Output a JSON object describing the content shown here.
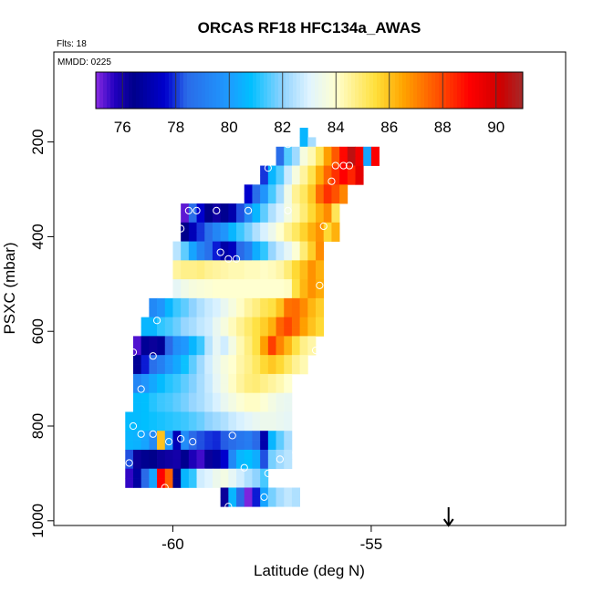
{
  "chart_data": {
    "type": "heatmap",
    "title": "ORCAS RF18 HFC134a_AWAS",
    "info_flights": "Flts: 18",
    "info_date": "MMDD: 0225",
    "xlabel": "Latitude (deg N)",
    "ylabel": "PSXC (mbar)",
    "xlim": [
      -63,
      -50.1
    ],
    "ylim": [
      1010,
      10
    ],
    "x_ticks": [
      -60,
      -55
    ],
    "x_tick_labels": [
      "-60",
      "-55"
    ],
    "y_ticks": [
      200,
      400,
      600,
      800,
      1000
    ],
    "y_tick_labels": [
      "200",
      "400",
      "600",
      "800",
      "1000"
    ],
    "colorbar": {
      "range": [
        75,
        91
      ],
      "ticks": [
        76,
        78,
        80,
        82,
        84,
        86,
        88,
        90
      ],
      "tick_labels": [
        "76",
        "78",
        "80",
        "82",
        "84",
        "86",
        "88",
        "90"
      ],
      "stops": [
        {
          "v": 75,
          "c": "#8A2BE2"
        },
        {
          "v": 75.7,
          "c": "#2200C0"
        },
        {
          "v": 76.4,
          "c": "#00008B"
        },
        {
          "v": 77.6,
          "c": "#0000CD"
        },
        {
          "v": 78.4,
          "c": "#2A6AE8"
        },
        {
          "v": 80,
          "c": "#1E9BFF"
        },
        {
          "v": 80.8,
          "c": "#00BFFF"
        },
        {
          "v": 82,
          "c": "#8FD3FF"
        },
        {
          "v": 83,
          "c": "#E0F4FF"
        },
        {
          "v": 84,
          "c": "#FFFFD0"
        },
        {
          "v": 85.5,
          "c": "#FFDF3A"
        },
        {
          "v": 86.5,
          "c": "#FFA500"
        },
        {
          "v": 88,
          "c": "#FF4500"
        },
        {
          "v": 89,
          "c": "#FF0000"
        },
        {
          "v": 90.2,
          "c": "#CC0000"
        },
        {
          "v": 91,
          "c": "#A52A2A"
        }
      ]
    },
    "bin_width_deg": 0.2,
    "bin_height_mbar": 20,
    "rows": [
      {
        "p": 180,
        "x0": -56.8,
        "v": [
          80.6
        ]
      },
      {
        "p": 200,
        "x0": -56.8,
        "v": [
          80.6,
          82.3
        ]
      },
      {
        "p": 220,
        "x0": -57.4,
        "v": [
          78.5,
          81.5,
          82.2,
          83.7,
          84.3,
          85.2,
          86.6,
          87.7,
          88.9,
          90.5,
          89.3,
          80.2,
          89.1
        ]
      },
      {
        "p": 240,
        "x0": -57.4,
        "v": [
          78.5,
          81.5,
          82.2,
          83.7,
          84.3,
          85.2,
          86.6,
          87.7,
          88.9,
          90.5,
          89.3,
          80.2,
          89.1
        ]
      },
      {
        "p": 260,
        "x0": -57.8,
        "v": [
          78.0,
          80.6,
          81.5,
          82.7,
          83.7,
          84.5,
          85.3,
          86.4,
          87.5,
          88.3,
          89.0,
          88.5,
          89.6
        ]
      },
      {
        "p": 280,
        "x0": -57.8,
        "v": [
          78.0,
          80.6,
          81.5,
          82.7,
          83.7,
          84.5,
          85.3,
          86.4,
          87.5,
          88.3,
          89.0,
          88.5,
          89.6
        ]
      },
      {
        "p": 300,
        "x0": -58.2,
        "v": [
          77.6,
          78.5,
          79.8,
          81.4,
          82.3,
          83.5,
          84.6,
          85.1,
          85.9,
          87.4,
          88.3,
          87.8,
          87.0
        ]
      },
      {
        "p": 320,
        "x0": -58.2,
        "v": [
          77.6,
          78.5,
          79.8,
          81.4,
          82.3,
          83.5,
          84.6,
          85.1,
          85.9,
          87.4,
          88.3,
          87.8,
          87.0
        ]
      },
      {
        "p": 340,
        "x0": -59.8,
        "v": [
          75.3,
          78.5,
          77.6,
          76.4,
          76.1,
          76.5,
          77.0,
          78.2,
          79.4,
          80.6,
          81.6,
          82.4,
          82.9,
          83.6,
          84.3,
          84.9,
          85.6,
          86.3,
          86.9,
          85.2
        ]
      },
      {
        "p": 360,
        "x0": -59.8,
        "v": [
          75.3,
          78.5,
          77.6,
          76.4,
          76.1,
          76.5,
          77.0,
          78.2,
          79.4,
          80.6,
          81.6,
          82.4,
          82.9,
          83.6,
          84.3,
          84.9,
          85.6,
          86.3,
          86.9,
          85.2
        ]
      },
      {
        "p": 380,
        "x0": -59.8,
        "v": [
          76.4,
          77.2,
          78.0,
          78.6,
          79.3,
          79.8,
          80.6,
          81.3,
          81.8,
          82.4,
          82.9,
          83.4,
          84.0,
          84.6,
          85.1,
          85.7,
          86.3,
          86.8,
          85.6,
          86.3
        ]
      },
      {
        "p": 400,
        "x0": -59.8,
        "v": [
          76.4,
          77.2,
          78.0,
          78.6,
          79.3,
          79.8,
          80.6,
          81.3,
          81.8,
          82.4,
          82.9,
          83.4,
          84.0,
          84.6,
          85.1,
          85.7,
          86.3,
          86.8,
          85.6,
          86.3
        ]
      },
      {
        "p": 420,
        "x0": -60.0,
        "v": [
          82.5,
          81.6,
          80.2,
          79.2,
          78.6,
          77.8,
          76.9,
          77.3,
          78.4,
          79.1,
          80.4,
          81.2,
          82.1,
          82.7,
          83.2,
          83.9,
          84.9,
          85.8,
          86.9
        ]
      },
      {
        "p": 440,
        "x0": -60.0,
        "v": [
          82.5,
          81.6,
          80.2,
          79.2,
          78.6,
          77.8,
          76.9,
          77.3,
          78.4,
          79.1,
          80.4,
          81.2,
          82.1,
          82.7,
          83.2,
          83.9,
          84.9,
          85.8,
          86.9
        ]
      },
      {
        "p": 460,
        "x0": -60.0,
        "v": [
          84.5,
          84.7,
          84.7,
          84.8,
          84.6,
          84.5,
          84.4,
          84.3,
          84.3,
          84.2,
          84.2,
          84.1,
          84.2,
          84.4,
          84.9,
          85.6,
          86.1,
          86.8,
          86.3
        ]
      },
      {
        "p": 480,
        "x0": -60.0,
        "v": [
          84.5,
          84.7,
          84.7,
          84.8,
          84.6,
          84.5,
          84.4,
          84.3,
          84.3,
          84.2,
          84.2,
          84.1,
          84.2,
          84.4,
          84.9,
          85.6,
          86.1,
          86.8,
          86.3
        ]
      },
      {
        "p": 500,
        "x0": -60.0,
        "v": [
          83.2,
          83.5,
          83.7,
          83.8,
          83.9,
          84.0,
          84.0,
          84.0,
          84.0,
          84.0,
          84.0,
          84.0,
          84.0,
          84.0,
          84.1,
          85.4,
          86.2,
          86.8,
          86.4
        ]
      },
      {
        "p": 520,
        "x0": -60.0,
        "v": [
          83.2,
          83.5,
          83.7,
          83.8,
          83.9,
          84.0,
          84.0,
          84.0,
          84.0,
          84.0,
          84.0,
          84.0,
          84.0,
          84.0,
          84.1,
          85.4,
          86.2,
          86.8,
          86.4
        ]
      },
      {
        "p": 540,
        "x0": -60.6,
        "v": [
          79.4,
          79.8,
          80.6,
          81.3,
          81.6,
          82.0,
          82.4,
          82.7,
          82.9,
          83.3,
          83.7,
          84.1,
          84.5,
          84.8,
          85.2,
          85.4,
          86.0,
          87.3,
          87.4,
          86.9,
          86.2,
          85.8
        ]
      },
      {
        "p": 560,
        "x0": -60.6,
        "v": [
          79.4,
          79.8,
          80.6,
          81.3,
          81.6,
          82.0,
          82.4,
          82.7,
          82.9,
          83.3,
          83.7,
          84.1,
          84.5,
          84.8,
          85.2,
          85.4,
          86.0,
          87.3,
          87.4,
          86.9,
          86.2,
          85.8
        ]
      },
      {
        "p": 580,
        "x0": -60.8,
        "v": [
          80.6,
          80.6,
          81.2,
          81.4,
          81.7,
          82.1,
          82.3,
          82.6,
          82.8,
          83.3,
          83.7,
          84.2,
          84.6,
          85.0,
          85.4,
          85.8,
          86.3,
          87.5,
          88.0,
          87.4,
          86.6,
          86.0,
          85.6
        ]
      },
      {
        "p": 600,
        "x0": -60.8,
        "v": [
          80.6,
          80.6,
          81.2,
          81.4,
          81.7,
          82.1,
          82.3,
          82.6,
          82.8,
          83.3,
          83.7,
          84.2,
          84.6,
          85.0,
          85.4,
          85.8,
          86.3,
          87.5,
          88.0,
          87.4,
          86.6,
          86.0,
          85.6
        ]
      },
      {
        "p": 620,
        "x0": -61.0,
        "v": [
          75.4,
          76.6,
          76.2,
          76.6,
          78.4,
          79.6,
          79.9,
          80.6,
          81.3,
          82.5,
          83.2,
          82.8,
          83.6,
          84.3,
          84.8,
          85.4,
          86.6,
          88.1,
          87.0,
          86.2,
          85.4,
          84.7,
          84.4
        ]
      },
      {
        "p": 640,
        "x0": -61.0,
        "v": [
          75.4,
          76.6,
          76.2,
          76.6,
          78.4,
          79.6,
          79.9,
          80.6,
          81.3,
          82.5,
          83.2,
          82.8,
          83.6,
          84.3,
          84.8,
          85.4,
          86.6,
          88.1,
          87.0,
          86.2,
          85.4,
          84.7,
          84.4
        ]
      },
      {
        "p": 660,
        "x0": -61.0,
        "v": [
          76.6,
          77.8,
          78.6,
          79.1,
          79.8,
          80.3,
          80.9,
          81.6,
          82.2,
          82.8,
          83.3,
          83.7,
          84.0,
          84.4,
          84.7,
          85.1,
          85.6,
          85.9,
          85.6,
          85.1,
          84.6,
          84.3
        ]
      },
      {
        "p": 680,
        "x0": -61.0,
        "v": [
          76.6,
          77.8,
          78.6,
          79.1,
          79.8,
          80.3,
          80.9,
          81.6,
          82.2,
          82.8,
          83.3,
          83.7,
          84.0,
          84.4,
          84.7,
          85.1,
          85.6,
          85.9,
          85.6,
          85.1,
          84.6,
          84.3
        ]
      },
      {
        "p": 700,
        "x0": -61.0,
        "v": [
          79.3,
          79.8,
          80.3,
          80.7,
          81.1,
          81.3,
          81.6,
          81.9,
          82.3,
          82.7,
          83.2,
          83.6,
          84.1,
          84.5,
          84.8,
          84.9,
          84.7,
          84.5,
          84.3,
          84.0
        ]
      },
      {
        "p": 720,
        "x0": -61.0,
        "v": [
          79.3,
          79.8,
          80.3,
          80.7,
          81.1,
          81.3,
          81.6,
          81.9,
          82.3,
          82.7,
          83.2,
          83.6,
          84.1,
          84.5,
          84.8,
          84.9,
          84.7,
          84.5,
          84.3,
          84.0
        ]
      },
      {
        "p": 740,
        "x0": -61.0,
        "v": [
          80.7,
          80.8,
          81.1,
          81.3,
          81.4,
          81.6,
          81.8,
          82.1,
          82.3,
          82.6,
          82.9,
          83.3,
          83.6,
          83.9,
          84.1,
          84.1,
          83.9,
          83.6,
          83.4,
          83.3
        ]
      },
      {
        "p": 760,
        "x0": -61.0,
        "v": [
          80.7,
          80.8,
          81.1,
          81.3,
          81.4,
          81.6,
          81.8,
          82.1,
          82.3,
          82.6,
          82.9,
          83.3,
          83.6,
          83.9,
          84.1,
          84.1,
          83.9,
          83.6,
          83.4,
          83.3
        ]
      },
      {
        "p": 780,
        "x0": -61.2,
        "v": [
          80.7,
          80.7,
          80.8,
          80.9,
          81.0,
          81.1,
          81.2,
          81.3,
          81.5,
          81.7,
          82.0,
          82.2,
          82.4,
          82.7,
          82.9,
          83.1,
          83.3,
          83.4,
          83.4,
          83.3,
          83.2
        ]
      },
      {
        "p": 800,
        "x0": -61.2,
        "v": [
          80.7,
          80.7,
          80.8,
          80.9,
          81.0,
          81.1,
          81.2,
          81.3,
          81.5,
          81.7,
          82.0,
          82.2,
          82.4,
          82.7,
          82.9,
          83.1,
          83.3,
          83.4,
          83.4,
          83.3,
          83.2
        ]
      },
      {
        "p": 820,
        "x0": -61.2,
        "v": [
          80.6,
          80.5,
          80.2,
          79.4,
          86.0,
          79.9,
          77.2,
          79.5,
          78.4,
          78.2,
          78.0,
          77.9,
          78.3,
          78.5,
          78.8,
          79.0,
          78.4,
          77.0,
          80.6,
          81.6,
          82.3
        ]
      },
      {
        "p": 840,
        "x0": -61.2,
        "v": [
          80.6,
          80.5,
          80.2,
          79.4,
          86.0,
          79.9,
          77.2,
          79.5,
          78.4,
          78.2,
          78.0,
          77.9,
          78.3,
          78.5,
          78.8,
          79.0,
          78.4,
          77.0,
          80.6,
          81.6,
          82.3
        ]
      },
      {
        "p": 860,
        "x0": -61.2,
        "v": [
          78.2,
          76.2,
          76.5,
          76.4,
          76.2,
          76.1,
          76.0,
          76.5,
          75.8,
          75.5,
          76.2,
          76.8,
          77.6,
          79.4,
          80.6,
          80.8,
          80.4,
          78.2,
          81.8,
          82.2,
          82.5
        ]
      },
      {
        "p": 880,
        "x0": -61.2,
        "v": [
          78.2,
          76.2,
          76.5,
          76.4,
          76.2,
          76.1,
          76.0,
          76.5,
          75.8,
          75.5,
          76.2,
          76.8,
          77.6,
          79.4,
          80.6,
          80.8,
          80.4,
          78.2,
          81.8,
          82.2,
          82.5
        ]
      },
      {
        "p": 900,
        "x0": -61.2,
        "v": [
          75.6,
          76.8,
          78.4,
          80.2,
          89.0,
          87.6,
          76.4,
          80.6,
          81.2,
          82.8,
          83.0,
          83.4,
          83.6,
          83.2,
          82.8,
          82.4,
          82.0,
          81.4
        ]
      },
      {
        "p": 920,
        "x0": -61.2,
        "v": [
          75.6,
          76.8,
          78.4,
          80.2,
          89.0,
          87.6,
          76.4,
          80.6,
          81.2,
          82.8,
          83.0,
          83.4,
          83.6,
          83.2,
          82.8,
          82.4,
          82.0,
          81.4
        ]
      },
      {
        "p": 940,
        "x0": -58.8,
        "v": [
          76.2,
          80.6,
          78.4,
          75.1,
          77.8,
          80.2,
          81.8,
          82.3,
          82.6,
          82.4
        ]
      },
      {
        "p": 960,
        "x0": -58.8,
        "v": [
          76.2,
          80.6,
          78.4,
          75.1,
          77.8,
          80.2,
          81.8,
          82.3,
          82.6,
          82.4
        ]
      }
    ],
    "points": [
      {
        "x": -57.1,
        "p": 205
      },
      {
        "x": -57.6,
        "p": 255
      },
      {
        "x": -55.9,
        "p": 250
      },
      {
        "x": -55.7,
        "p": 250
      },
      {
        "x": -55.55,
        "p": 250
      },
      {
        "x": -56.0,
        "p": 283
      },
      {
        "x": -59.6,
        "p": 345
      },
      {
        "x": -59.4,
        "p": 345
      },
      {
        "x": -58.9,
        "p": 345
      },
      {
        "x": -58.1,
        "p": 345
      },
      {
        "x": -57.1,
        "p": 345
      },
      {
        "x": -59.8,
        "p": 383
      },
      {
        "x": -55.4,
        "p": 393
      },
      {
        "x": -55.3,
        "p": 393
      },
      {
        "x": -56.2,
        "p": 378
      },
      {
        "x": -60.1,
        "p": 447
      },
      {
        "x": -58.8,
        "p": 433
      },
      {
        "x": -58.6,
        "p": 447
      },
      {
        "x": -58.4,
        "p": 447
      },
      {
        "x": -56.3,
        "p": 503
      },
      {
        "x": -60.4,
        "p": 577
      },
      {
        "x": -61.0,
        "p": 644
      },
      {
        "x": -60.5,
        "p": 652
      },
      {
        "x": -56.4,
        "p": 640
      },
      {
        "x": -60.8,
        "p": 722
      },
      {
        "x": -61.0,
        "p": 800
      },
      {
        "x": -60.8,
        "p": 817
      },
      {
        "x": -60.5,
        "p": 817
      },
      {
        "x": -60.1,
        "p": 833
      },
      {
        "x": -59.8,
        "p": 827
      },
      {
        "x": -59.5,
        "p": 833
      },
      {
        "x": -58.5,
        "p": 820
      },
      {
        "x": -56.6,
        "p": 820
      },
      {
        "x": -61.1,
        "p": 878
      },
      {
        "x": -58.2,
        "p": 888
      },
      {
        "x": -57.6,
        "p": 900
      },
      {
        "x": -57.3,
        "p": 870
      },
      {
        "x": -56.9,
        "p": 856
      },
      {
        "x": -56.6,
        "p": 856
      },
      {
        "x": -61.3,
        "p": 948
      },
      {
        "x": -61.2,
        "p": 948
      },
      {
        "x": -60.8,
        "p": 948
      },
      {
        "x": -60.2,
        "p": 930
      },
      {
        "x": -60.0,
        "p": 945
      },
      {
        "x": -59.8,
        "p": 945
      },
      {
        "x": -59.6,
        "p": 948
      },
      {
        "x": -58.9,
        "p": 970
      },
      {
        "x": -58.6,
        "p": 970
      },
      {
        "x": -57.7,
        "p": 950
      },
      {
        "x": -56.5,
        "p": 945
      },
      {
        "x": -56.35,
        "p": 970
      },
      {
        "x": -56.3,
        "p": 978
      }
    ],
    "arrow_marker": {
      "x": -53.05
    }
  }
}
